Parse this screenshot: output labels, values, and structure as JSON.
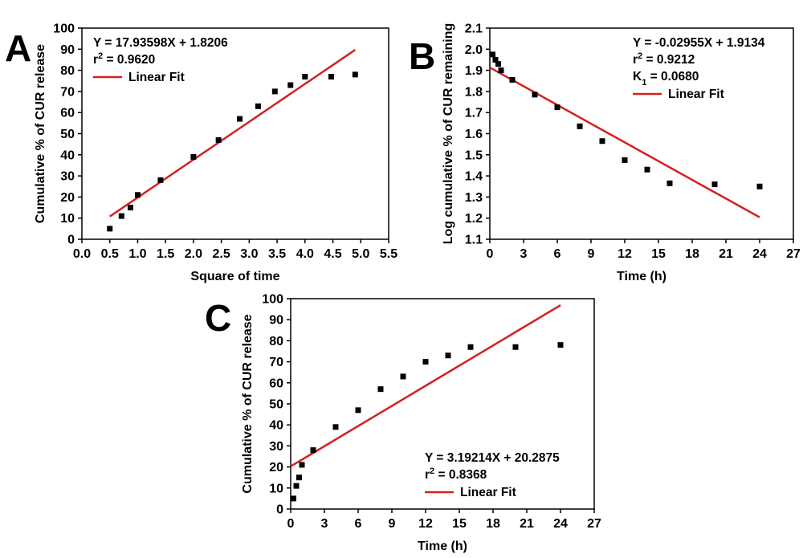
{
  "colors": {
    "fit_line": "#d42020",
    "points": "#000000",
    "axes": "#000000"
  },
  "chart_data": [
    {
      "panel": "A",
      "type": "scatter",
      "xlabel": "Square of time",
      "ylabel": "Cumulative % of CUR release",
      "xlim": [
        0,
        5.5
      ],
      "ylim": [
        0,
        100
      ],
      "xticks": [
        "0.0",
        "0.5",
        "1.0",
        "1.5",
        "2.0",
        "2.5",
        "3.0",
        "3.5",
        "4.0",
        "4.5",
        "5.0",
        "5.5"
      ],
      "yticks": [
        "0",
        "10",
        "20",
        "30",
        "40",
        "50",
        "60",
        "70",
        "80",
        "90",
        "100"
      ],
      "points": {
        "x": [
          0.5,
          0.71,
          0.87,
          1.0,
          1.41,
          2.0,
          2.45,
          2.83,
          3.16,
          3.46,
          3.74,
          4.0,
          4.47,
          4.9
        ],
        "y": [
          5,
          11,
          15,
          21,
          28,
          39,
          47,
          57,
          63,
          70,
          73,
          77,
          77,
          78
        ]
      },
      "fit": {
        "slope": 17.93598,
        "intercept": 1.8206,
        "x_range": [
          0.5,
          4.9
        ]
      },
      "legend": {
        "position": "top-left",
        "lines": [
          "Y = 17.93598X + 1.8206",
          "r2 = 0.9620"
        ],
        "fit_label": "Linear Fit"
      }
    },
    {
      "panel": "B",
      "type": "scatter",
      "xlabel": "Time (h)",
      "ylabel": "Log cumulative % of CUR remaining",
      "xlim": [
        0,
        27
      ],
      "ylim": [
        1.1,
        2.1
      ],
      "xticks": [
        "0",
        "3",
        "6",
        "9",
        "12",
        "15",
        "18",
        "21",
        "24",
        "27"
      ],
      "yticks": [
        "1.1",
        "1.2",
        "1.3",
        "1.4",
        "1.5",
        "1.6",
        "1.7",
        "1.8",
        "1.9",
        "2.0",
        "2.1"
      ],
      "points": {
        "x": [
          0.25,
          0.5,
          0.75,
          1,
          2,
          4,
          6,
          8,
          10,
          12,
          14,
          16,
          20,
          24
        ],
        "y": [
          1.975,
          1.95,
          1.93,
          1.9,
          1.855,
          1.785,
          1.725,
          1.635,
          1.565,
          1.475,
          1.43,
          1.365,
          1.36,
          1.35
        ]
      },
      "fit": {
        "slope": -0.02955,
        "intercept": 1.9134,
        "x_range": [
          0,
          24
        ]
      },
      "legend": {
        "position": "top-right",
        "lines": [
          "Y = -0.02955X + 1.9134",
          "r2 = 0.9212",
          "K1 = 0.0680"
        ],
        "fit_label": "Linear Fit"
      }
    },
    {
      "panel": "C",
      "type": "scatter",
      "xlabel": "Time (h)",
      "ylabel": "Cumulative % of CUR release",
      "xlim": [
        0,
        27
      ],
      "ylim": [
        0,
        100
      ],
      "xticks": [
        "0",
        "3",
        "6",
        "9",
        "12",
        "15",
        "18",
        "21",
        "24",
        "27"
      ],
      "yticks": [
        "0",
        "10",
        "20",
        "30",
        "40",
        "50",
        "60",
        "70",
        "80",
        "90",
        "100"
      ],
      "points": {
        "x": [
          0.25,
          0.5,
          0.75,
          1,
          2,
          4,
          6,
          8,
          10,
          12,
          14,
          16,
          20,
          24
        ],
        "y": [
          5,
          11,
          15,
          21,
          28,
          39,
          47,
          57,
          63,
          70,
          73,
          77,
          77,
          78
        ]
      },
      "fit": {
        "slope": 3.19214,
        "intercept": 20.2875,
        "x_range": [
          0,
          24
        ]
      },
      "legend": {
        "position": "bottom-right",
        "lines": [
          "Y = 3.19214X + 20.2875",
          "r2 = 0.8368"
        ],
        "fit_label": "Linear Fit"
      }
    }
  ]
}
